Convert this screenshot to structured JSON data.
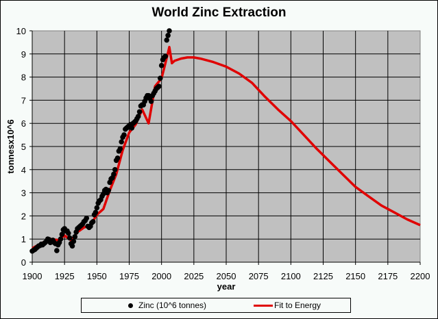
{
  "chart_data": {
    "type": "scatter+line",
    "title": "World Zinc Extraction",
    "xlabel": "year",
    "ylabel": "tonnesx10^6",
    "xlim": [
      1900,
      2200
    ],
    "ylim": [
      0,
      10
    ],
    "xticks": [
      1900,
      1925,
      1950,
      1975,
      2000,
      2025,
      2050,
      2075,
      2100,
      2125,
      2150,
      2175,
      2200
    ],
    "yticks": [
      0,
      1,
      2,
      3,
      4,
      5,
      6,
      7,
      8,
      9,
      10
    ],
    "grid": true,
    "legend_position": "bottom",
    "colors": {
      "plot_bg": "#c0c0c0",
      "zinc": "#000000",
      "fit": "#e00000"
    },
    "series": [
      {
        "name": "Zinc (10^6 tonnes)",
        "kind": "scatter",
        "x": [
          1900,
          1901,
          1902,
          1903,
          1904,
          1905,
          1906,
          1907,
          1908,
          1909,
          1910,
          1911,
          1912,
          1913,
          1914,
          1915,
          1916,
          1917,
          1918,
          1919,
          1920,
          1921,
          1922,
          1923,
          1924,
          1925,
          1926,
          1927,
          1928,
          1929,
          1930,
          1931,
          1932,
          1933,
          1934,
          1935,
          1936,
          1937,
          1938,
          1939,
          1940,
          1941,
          1942,
          1943,
          1944,
          1945,
          1946,
          1947,
          1948,
          1949,
          1950,
          1951,
          1952,
          1953,
          1954,
          1955,
          1956,
          1957,
          1958,
          1959,
          1960,
          1961,
          1962,
          1963,
          1964,
          1965,
          1966,
          1967,
          1968,
          1969,
          1970,
          1971,
          1972,
          1973,
          1974,
          1975,
          1976,
          1977,
          1978,
          1979,
          1980,
          1981,
          1982,
          1983,
          1984,
          1985,
          1986,
          1987,
          1988,
          1989,
          1990,
          1991,
          1992,
          1993,
          1994,
          1995,
          1996,
          1997,
          1998,
          1999,
          2000,
          2001,
          2002,
          2003,
          2004,
          2005,
          2006
        ],
        "y": [
          0.48,
          0.52,
          0.55,
          0.6,
          0.65,
          0.7,
          0.72,
          0.78,
          0.75,
          0.8,
          0.85,
          0.9,
          1.0,
          0.98,
          0.85,
          0.9,
          0.95,
          0.85,
          0.8,
          0.5,
          0.75,
          0.85,
          1.0,
          1.2,
          1.4,
          1.45,
          1.35,
          1.35,
          1.25,
          1.05,
          0.8,
          0.7,
          0.9,
          1.1,
          1.3,
          1.45,
          1.5,
          1.55,
          1.6,
          1.65,
          1.75,
          1.8,
          1.9,
          1.55,
          1.5,
          1.55,
          1.7,
          1.75,
          2.05,
          2.15,
          2.35,
          2.55,
          2.65,
          2.7,
          2.85,
          2.95,
          3.1,
          3.15,
          3.0,
          3.1,
          3.45,
          3.6,
          3.65,
          3.8,
          4.0,
          4.4,
          4.5,
          4.8,
          4.9,
          5.2,
          5.4,
          5.5,
          5.75,
          5.8,
          5.85,
          5.9,
          5.95,
          5.8,
          6.0,
          6.05,
          6.1,
          6.2,
          6.3,
          6.5,
          6.75,
          6.8,
          6.8,
          6.95,
          7.1,
          7.2,
          7.2,
          7.1,
          6.95,
          7.2,
          7.3,
          7.4,
          7.5,
          7.55,
          7.6,
          7.95,
          8.5,
          8.75,
          8.85,
          8.9,
          9.6,
          9.8,
          10.0
        ]
      },
      {
        "name": "Fit to Energy",
        "kind": "line",
        "x": [
          1900,
          1905,
          1910,
          1915,
          1920,
          1925,
          1930,
          1935,
          1940,
          1945,
          1950,
          1955,
          1960,
          1965,
          1970,
          1975,
          1980,
          1985,
          1990,
          1995,
          2000,
          2003,
          2005,
          2006,
          2008,
          2010,
          2015,
          2020,
          2025,
          2030,
          2040,
          2050,
          2060,
          2070,
          2080,
          2090,
          2100,
          2110,
          2120,
          2130,
          2140,
          2150,
          2160,
          2170,
          2180,
          2190,
          2200
        ],
        "y": [
          0.6,
          0.75,
          0.9,
          1.0,
          0.95,
          1.15,
          0.95,
          1.3,
          1.5,
          1.6,
          2.05,
          2.3,
          3.1,
          3.8,
          4.85,
          5.6,
          5.95,
          6.6,
          6.0,
          7.6,
          7.95,
          8.6,
          9.05,
          9.3,
          8.6,
          8.7,
          8.8,
          8.85,
          8.85,
          8.8,
          8.65,
          8.45,
          8.15,
          7.75,
          7.15,
          6.6,
          6.1,
          5.5,
          4.9,
          4.35,
          3.8,
          3.25,
          2.85,
          2.45,
          2.15,
          1.85,
          1.6
        ]
      }
    ]
  },
  "legend": {
    "zinc_label": "Zinc (10^6 tonnes)",
    "fit_label": "Fit to Energy"
  }
}
